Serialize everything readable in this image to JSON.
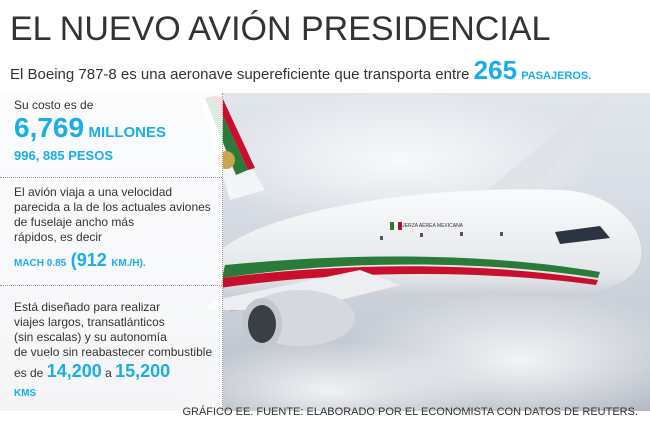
{
  "header": {
    "title": "EL NUEVO AVIÓN PRESIDENCIAL",
    "subtitle": {
      "text": "El Boeing 787-8 es una aeronave supereficiente que transporta entre",
      "number": "265",
      "unit": "PASAJEROS."
    }
  },
  "cost": {
    "intro": "Su costo es de",
    "number": "6,769",
    "unit": "MILLONES",
    "detail": "996, 885 PESOS"
  },
  "speed": {
    "lines": [
      "El avión viaja a una velocidad",
      "parecida a la de los actuales aviones",
      "de fuselaje ancho más",
      "rápidos, es decir"
    ],
    "mach": "MACH 0.85",
    "number": "(912",
    "unit": "KM./H)."
  },
  "range": {
    "lines": [
      "Está diseñado para realizar",
      "viajes largos, transatlánticos",
      "(sin escalas) y su autonomía",
      "de vuelo sin reabastecer combustible"
    ],
    "prefix": "es de",
    "from": "14,200",
    "joiner": "a",
    "to": "15,200",
    "unit": "KMS"
  },
  "plane": {
    "livery": "FUERZA AÉREA MEXICANA"
  },
  "footer": "GRÁFICO EE. FUENTE: ELABORADO POR EL ECONOMISTA CON DATOS DE REUTERS."
}
